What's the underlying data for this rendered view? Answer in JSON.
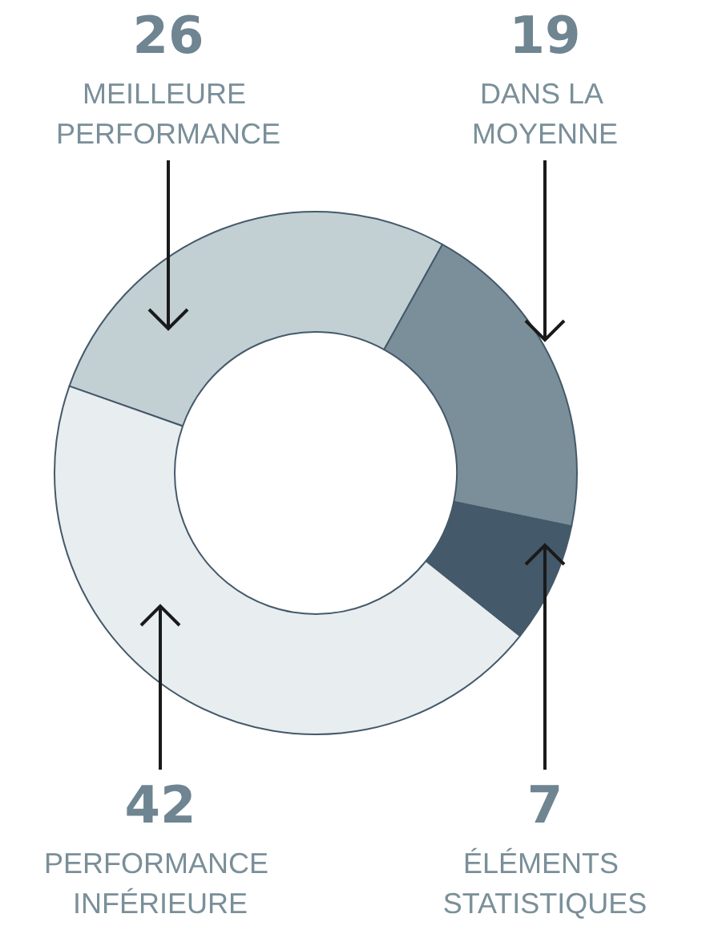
{
  "chart_data": {
    "type": "donut",
    "categories": [
      "MEILLEURE PERFORMANCE",
      "DANS LA MOYENNE",
      "ÉLÉMENTS STATISTIQUES",
      "PERFORMANCE INFÉRIEURE"
    ],
    "values": [
      26,
      19,
      7,
      42
    ],
    "colors": [
      "#c2d0d4",
      "#7a8f99",
      "#44596a",
      "#e8edef"
    ],
    "data_labels": true,
    "legend": false
  }
}
